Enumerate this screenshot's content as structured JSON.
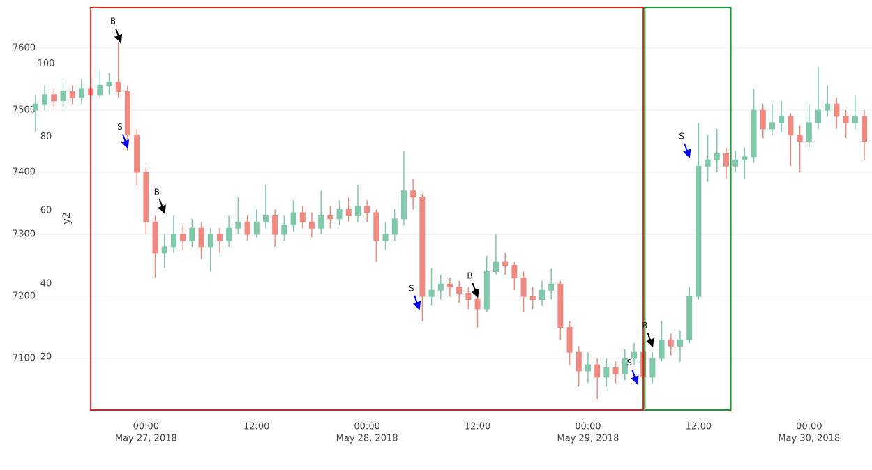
{
  "chart_data": {
    "type": "candlestick",
    "x": [
      "2018-05-26 12:00",
      "2018-05-26 13:00",
      "2018-05-26 14:00",
      "2018-05-26 15:00",
      "2018-05-26 16:00",
      "2018-05-26 17:00",
      "2018-05-26 18:00",
      "2018-05-26 19:00",
      "2018-05-26 20:00",
      "2018-05-26 21:00",
      "2018-05-26 22:00",
      "2018-05-26 23:00",
      "2018-05-27 00:00",
      "2018-05-27 01:00",
      "2018-05-27 02:00",
      "2018-05-27 03:00",
      "2018-05-27 04:00",
      "2018-05-27 05:00",
      "2018-05-27 06:00",
      "2018-05-27 07:00",
      "2018-05-27 08:00",
      "2018-05-27 09:00",
      "2018-05-27 10:00",
      "2018-05-27 11:00",
      "2018-05-27 12:00",
      "2018-05-27 13:00",
      "2018-05-27 14:00",
      "2018-05-27 15:00",
      "2018-05-27 16:00",
      "2018-05-27 17:00",
      "2018-05-27 18:00",
      "2018-05-27 19:00",
      "2018-05-27 20:00",
      "2018-05-27 21:00",
      "2018-05-27 22:00",
      "2018-05-27 23:00",
      "2018-05-28 00:00",
      "2018-05-28 01:00",
      "2018-05-28 02:00",
      "2018-05-28 03:00",
      "2018-05-28 04:00",
      "2018-05-28 05:00",
      "2018-05-28 06:00",
      "2018-05-28 07:00",
      "2018-05-28 08:00",
      "2018-05-28 09:00",
      "2018-05-28 10:00",
      "2018-05-28 11:00",
      "2018-05-28 12:00",
      "2018-05-28 13:00",
      "2018-05-28 14:00",
      "2018-05-28 15:00",
      "2018-05-28 16:00",
      "2018-05-28 17:00",
      "2018-05-28 18:00",
      "2018-05-28 19:00",
      "2018-05-28 20:00",
      "2018-05-28 21:00",
      "2018-05-28 22:00",
      "2018-05-28 23:00",
      "2018-05-29 00:00",
      "2018-05-29 01:00",
      "2018-05-29 02:00",
      "2018-05-29 03:00",
      "2018-05-29 04:00",
      "2018-05-29 05:00",
      "2018-05-29 06:00",
      "2018-05-29 07:00",
      "2018-05-29 08:00",
      "2018-05-29 09:00",
      "2018-05-29 10:00",
      "2018-05-29 11:00",
      "2018-05-29 12:00",
      "2018-05-29 13:00",
      "2018-05-29 14:00",
      "2018-05-29 15:00",
      "2018-05-29 16:00",
      "2018-05-29 17:00",
      "2018-05-29 18:00",
      "2018-05-29 19:00",
      "2018-05-29 20:00",
      "2018-05-29 21:00",
      "2018-05-29 22:00",
      "2018-05-29 23:00",
      "2018-05-30 00:00",
      "2018-05-30 01:00",
      "2018-05-30 02:00",
      "2018-05-30 03:00",
      "2018-05-30 04:00",
      "2018-05-30 05:00",
      "2018-05-30 06:00"
    ],
    "open": [
      7500,
      7510,
      7525,
      7515,
      7530,
      7520,
      7535,
      7525,
      7540,
      7545,
      7530,
      7460,
      7400,
      7320,
      7270,
      7280,
      7300,
      7290,
      7310,
      7280,
      7300,
      7290,
      7310,
      7320,
      7300,
      7320,
      7330,
      7300,
      7315,
      7335,
      7320,
      7310,
      7330,
      7325,
      7340,
      7330,
      7345,
      7335,
      7290,
      7300,
      7325,
      7370,
      7360,
      7200,
      7210,
      7220,
      7215,
      7205,
      7195,
      7180,
      7240,
      7255,
      7250,
      7230,
      7200,
      7195,
      7210,
      7220,
      7150,
      7110,
      7080,
      7090,
      7070,
      7085,
      7075,
      7100,
      7110,
      7070,
      7100,
      7130,
      7120,
      7130,
      7200,
      7410,
      7420,
      7430,
      7410,
      7420,
      7425,
      7500,
      7470,
      7480,
      7490,
      7460,
      7450,
      7480,
      7500,
      7510,
      7490,
      7480,
      7490
    ],
    "high": [
      7525,
      7540,
      7535,
      7545,
      7540,
      7550,
      7545,
      7565,
      7560,
      7610,
      7540,
      7470,
      7410,
      7330,
      7300,
      7330,
      7315,
      7325,
      7320,
      7310,
      7310,
      7330,
      7360,
      7330,
      7340,
      7380,
      7340,
      7330,
      7355,
      7345,
      7335,
      7370,
      7345,
      7355,
      7360,
      7380,
      7355,
      7340,
      7320,
      7340,
      7435,
      7390,
      7365,
      7245,
      7235,
      7230,
      7225,
      7215,
      7205,
      7265,
      7300,
      7270,
      7255,
      7240,
      7215,
      7225,
      7245,
      7225,
      7160,
      7120,
      7110,
      7100,
      7100,
      7095,
      7115,
      7125,
      7115,
      7110,
      7160,
      7140,
      7145,
      7215,
      7480,
      7460,
      7470,
      7440,
      7435,
      7440,
      7535,
      7510,
      7510,
      7515,
      7495,
      7475,
      7510,
      7570,
      7540,
      7520,
      7500,
      7525,
      7500
    ],
    "low": [
      7465,
      7500,
      7505,
      7505,
      7510,
      7510,
      7515,
      7520,
      7525,
      7520,
      7435,
      7380,
      7300,
      7230,
      7245,
      7270,
      7275,
      7280,
      7260,
      7240,
      7270,
      7280,
      7300,
      7290,
      7295,
      7310,
      7280,
      7290,
      7305,
      7310,
      7295,
      7300,
      7310,
      7315,
      7320,
      7320,
      7320,
      7255,
      7275,
      7290,
      7315,
      7340,
      7160,
      7185,
      7195,
      7200,
      7190,
      7180,
      7150,
      7175,
      7235,
      7235,
      7210,
      7175,
      7180,
      7185,
      7195,
      7130,
      7090,
      7055,
      7060,
      7035,
      7055,
      7060,
      7065,
      7090,
      7045,
      7060,
      7095,
      7105,
      7095,
      7125,
      7195,
      7385,
      7400,
      7390,
      7400,
      7390,
      7415,
      7455,
      7460,
      7465,
      7410,
      7400,
      7440,
      7470,
      7490,
      7470,
      7455,
      7470,
      7420
    ],
    "close": [
      7510,
      7525,
      7515,
      7530,
      7520,
      7535,
      7525,
      7540,
      7545,
      7530,
      7460,
      7400,
      7320,
      7270,
      7280,
      7300,
      7290,
      7310,
      7280,
      7300,
      7290,
      7310,
      7320,
      7300,
      7320,
      7330,
      7300,
      7315,
      7335,
      7320,
      7310,
      7330,
      7325,
      7340,
      7330,
      7345,
      7335,
      7290,
      7300,
      7325,
      7370,
      7360,
      7200,
      7210,
      7220,
      7215,
      7205,
      7195,
      7180,
      7240,
      7255,
      7250,
      7230,
      7200,
      7195,
      7210,
      7220,
      7150,
      7110,
      7080,
      7090,
      7070,
      7085,
      7075,
      7100,
      7110,
      7070,
      7100,
      7130,
      7120,
      7130,
      7200,
      7410,
      7420,
      7430,
      7410,
      7420,
      7425,
      7500,
      7470,
      7480,
      7490,
      7460,
      7450,
      7480,
      7500,
      7510,
      7490,
      7480,
      7490,
      7450
    ],
    "increasing_color": "#7fc8a9",
    "decreasing_color": "#f08a80",
    "xlim": [
      "2018-05-26 12:05",
      "2018-05-30 06:50"
    ],
    "xticks": [
      {
        "value": "2018-05-27 00:00",
        "label": [
          "00:00",
          "May 27, 2018"
        ]
      },
      {
        "value": "2018-05-27 12:00",
        "label": [
          "12:00"
        ]
      },
      {
        "value": "2018-05-28 00:00",
        "label": [
          "00:00",
          "May 28, 2018"
        ]
      },
      {
        "value": "2018-05-28 12:00",
        "label": [
          "12:00"
        ]
      },
      {
        "value": "2018-05-29 00:00",
        "label": [
          "00:00",
          "May 29, 2018"
        ]
      },
      {
        "value": "2018-05-29 12:00",
        "label": [
          "12:00"
        ]
      },
      {
        "value": "2018-05-30 00:00",
        "label": [
          "00:00",
          "May 30, 2018"
        ]
      }
    ],
    "ylim": [
      7017,
      7666
    ],
    "yticks": [
      7100,
      7200,
      7300,
      7400,
      7500,
      7600
    ],
    "y2lim": [
      5.5,
      115.5
    ],
    "y2ticks": [
      20,
      40,
      60,
      80,
      100
    ],
    "y2_label": "y2",
    "grid": true,
    "shapes": [
      {
        "x0": "2018-05-26 18:00",
        "x1": "2018-05-29 06:00",
        "color": "#e31a1c"
      },
      {
        "x0": "2018-05-29 06:10",
        "x1": "2018-05-29 15:30",
        "color": "#1a9e33"
      }
    ],
    "annotations": [
      {
        "text": "B",
        "x": "2018-05-26 21:15",
        "y": 7610,
        "arrowcolor": "#000000"
      },
      {
        "text": "S",
        "x": "2018-05-26 22:00",
        "y": 7440,
        "arrowcolor": "#0000ff"
      },
      {
        "text": "B",
        "x": "2018-05-27 02:00",
        "y": 7335,
        "arrowcolor": "#000000"
      },
      {
        "text": "S",
        "x": "2018-05-28 05:40",
        "y": 7180,
        "arrowcolor": "#0000ff"
      },
      {
        "text": "B",
        "x": "2018-05-28 12:00",
        "y": 7200,
        "arrowcolor": "#000000"
      },
      {
        "text": "S",
        "x": "2018-05-29 05:20",
        "y": 7060,
        "arrowcolor": "#0000ff"
      },
      {
        "text": "B",
        "x": "2018-05-29 07:00",
        "y": 7120,
        "arrowcolor": "#000000"
      },
      {
        "text": "S",
        "x": "2018-05-29 11:00",
        "y": 7425,
        "arrowcolor": "#0000ff"
      }
    ]
  }
}
